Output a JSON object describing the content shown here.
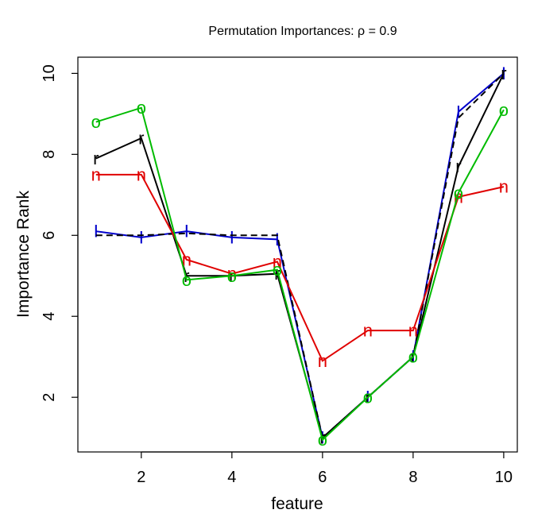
{
  "chart_data": {
    "type": "line",
    "title": "Permutation Importances: ρ = 0.9",
    "xlabel": "feature",
    "ylabel": "Importance Rank",
    "xlim": [
      0.6,
      10.3
    ],
    "ylim": [
      0.65,
      10.4
    ],
    "xticks": [
      2,
      4,
      6,
      8,
      10
    ],
    "yticks": [
      2,
      4,
      6,
      8,
      10
    ],
    "x": [
      1,
      2,
      3,
      4,
      5,
      6,
      7,
      8,
      9,
      10
    ],
    "series": [
      {
        "name": "I",
        "marker": "I",
        "color": "#0000cc",
        "dash": false,
        "values": [
          6.1,
          5.95,
          6.1,
          5.95,
          5.9,
          1.0,
          2.0,
          3.0,
          9.05,
          10.0
        ]
      },
      {
        "name": "I-dashed",
        "marker": "",
        "color": "#000000",
        "dash": true,
        "values": [
          6.0,
          6.0,
          6.05,
          6.0,
          6.0,
          1.0,
          2.0,
          3.0,
          8.9,
          10.0
        ]
      },
      {
        "name": "r",
        "marker": "r",
        "color": "#000000",
        "dash": false,
        "values": [
          7.9,
          8.4,
          5.0,
          5.0,
          5.05,
          1.0,
          2.0,
          3.0,
          7.7,
          10.0
        ]
      },
      {
        "name": "n",
        "marker": "n",
        "color": "#e00000",
        "dash": false,
        "values": [
          7.5,
          7.5,
          5.4,
          5.05,
          5.35,
          2.9,
          3.65,
          3.65,
          6.95,
          7.2
        ]
      },
      {
        "name": "o",
        "marker": "o",
        "color": "#00bb00",
        "dash": false,
        "values": [
          8.8,
          9.15,
          4.9,
          5.0,
          5.15,
          0.95,
          2.0,
          3.0,
          7.05,
          9.1
        ]
      }
    ]
  }
}
